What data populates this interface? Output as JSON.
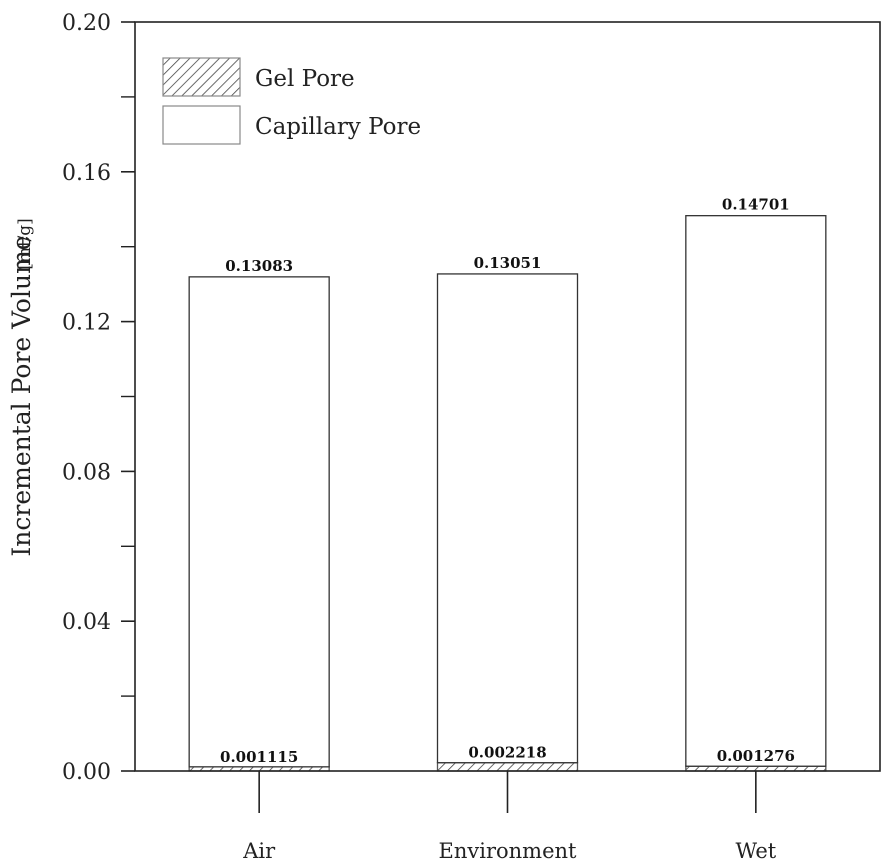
{
  "chart_data": {
    "type": "bar",
    "stacked": true,
    "categories": [
      "Air",
      "Environment",
      "Wet"
    ],
    "series": [
      {
        "name": "Gel Pore",
        "pattern": "hatch",
        "values": [
          0.001115,
          0.002218,
          0.001276
        ],
        "labels": [
          "0.001115",
          "0.002218",
          "0.001276"
        ]
      },
      {
        "name": "Capillary Pore",
        "pattern": "none",
        "values": [
          0.13083,
          0.13051,
          0.14701
        ],
        "labels": [
          "0.13083",
          "0.13051",
          "0.14701"
        ]
      }
    ],
    "title": "",
    "xlabel": "",
    "ylabel": "Incremental Pore Volume",
    "yunit": "[ml/g]",
    "ylim": [
      0,
      0.2
    ],
    "yticks": [
      "0.00",
      "0.04",
      "0.08",
      "0.12",
      "0.16",
      "0.20"
    ],
    "grid": false,
    "legend_position": "top-left"
  },
  "colors": {
    "axis": "#222222",
    "bar_fill": "#ffffff",
    "hatch": "#444444"
  }
}
